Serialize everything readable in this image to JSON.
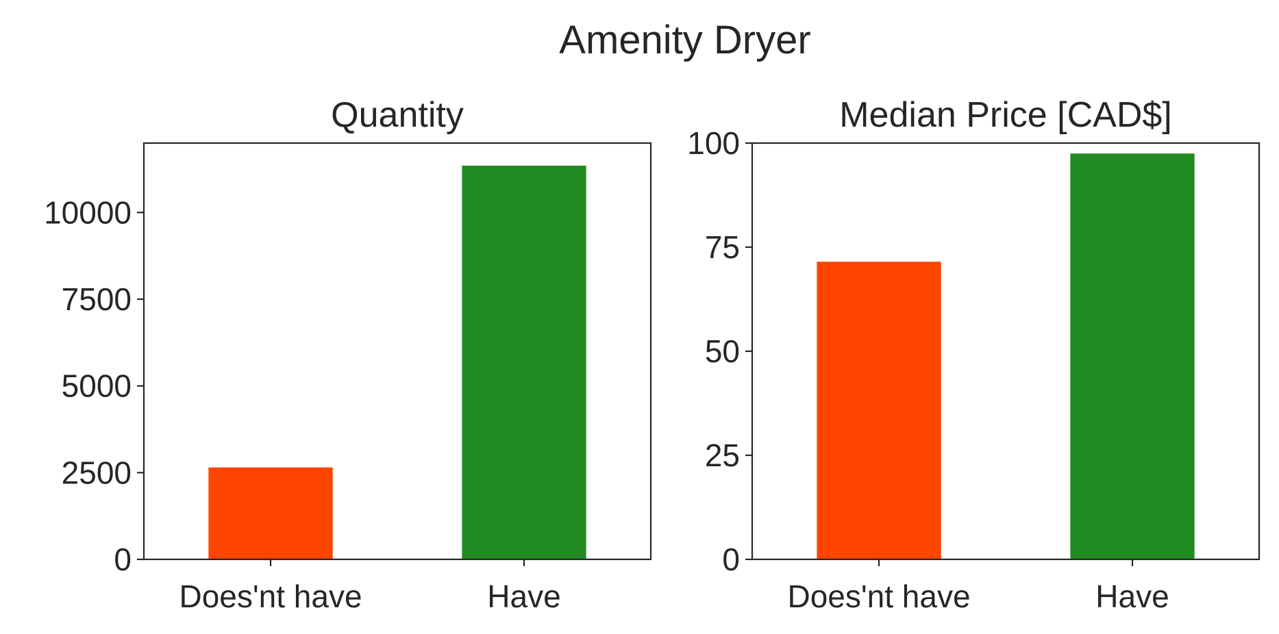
{
  "figure": {
    "suptitle": "Amenity Dryer"
  },
  "chart_data": [
    {
      "type": "bar",
      "title": "Quantity",
      "categories": [
        "Does'nt have",
        "Have"
      ],
      "values": [
        2650,
        11350
      ],
      "colors": [
        "#ff4500",
        "#228b22"
      ],
      "ylim": [
        0,
        12000
      ],
      "yticks": [
        0,
        2500,
        5000,
        7500,
        10000
      ],
      "ytick_labels": [
        "0",
        "2500",
        "5000",
        "7500",
        "10000"
      ],
      "xlabel": "",
      "ylabel": "",
      "grid": false
    },
    {
      "type": "bar",
      "title": "Median Price [CAD$]",
      "categories": [
        "Does'nt have",
        "Have"
      ],
      "values": [
        71.5,
        97.5
      ],
      "colors": [
        "#ff4500",
        "#228b22"
      ],
      "ylim": [
        0,
        100
      ],
      "yticks": [
        0,
        25,
        50,
        75,
        100
      ],
      "ytick_labels": [
        "0",
        "25",
        "50",
        "75",
        "100"
      ],
      "xlabel": "",
      "ylabel": "",
      "grid": false
    }
  ]
}
